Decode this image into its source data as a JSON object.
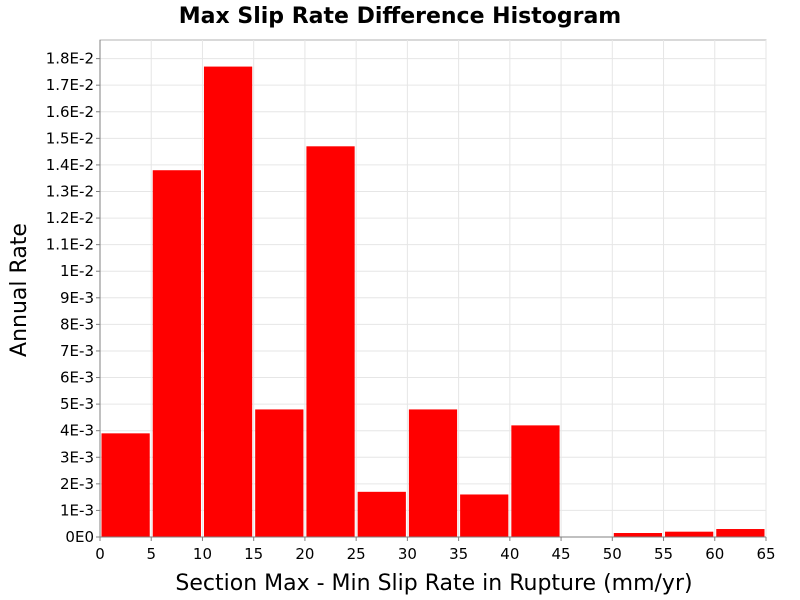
{
  "chart_data": {
    "type": "bar",
    "title": "Max Slip Rate Difference Histogram",
    "xlabel": "Section Max - Min Slip Rate in Rupture (mm/yr)",
    "ylabel": "Annual Rate",
    "bin_width": 5,
    "xlim": [
      0,
      65
    ],
    "ylim": [
      0,
      0.0187
    ],
    "x_ticks": [
      0,
      5,
      10,
      15,
      20,
      25,
      30,
      35,
      40,
      45,
      50,
      55,
      60,
      65
    ],
    "x_tick_labels": [
      "0",
      "5",
      "10",
      "15",
      "20",
      "25",
      "30",
      "35",
      "40",
      "45",
      "50",
      "55",
      "60",
      "65"
    ],
    "y_ticks": [
      0,
      0.001,
      0.002,
      0.003,
      0.004,
      0.005,
      0.006,
      0.007,
      0.008,
      0.009,
      0.01,
      0.011,
      0.012,
      0.013,
      0.014,
      0.015,
      0.016,
      0.017,
      0.018
    ],
    "y_tick_labels": [
      "0E0",
      "1E-3",
      "2E-3",
      "3E-3",
      "4E-3",
      "5E-3",
      "6E-3",
      "7E-3",
      "8E-3",
      "9E-3",
      "1E-2",
      "1.1E-2",
      "1.2E-2",
      "1.3E-2",
      "1.4E-2",
      "1.5E-2",
      "1.6E-2",
      "1.7E-2",
      "1.8E-2"
    ],
    "bin_starts": [
      0,
      5,
      10,
      15,
      20,
      25,
      30,
      35,
      40,
      45,
      50,
      55,
      60
    ],
    "values": [
      0.0039,
      0.0138,
      0.0177,
      0.0048,
      0.0147,
      0.0017,
      0.0048,
      0.0016,
      0.0042,
      0.0,
      0.00015,
      0.0002,
      0.0003
    ],
    "bar_color": "#ff0000",
    "grid": true,
    "legend": "none"
  }
}
